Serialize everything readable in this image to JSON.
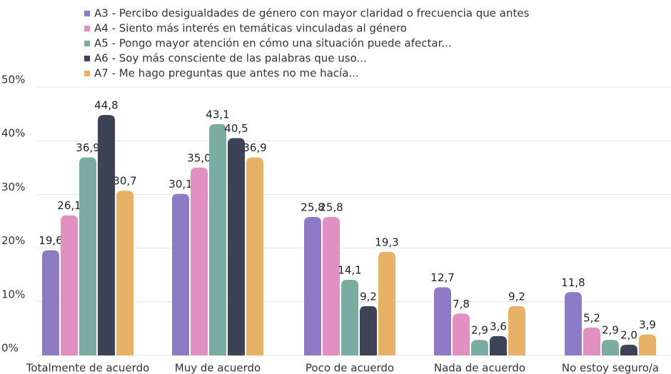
{
  "chart_data": {
    "type": "bar",
    "categories": [
      "Totalmente de acuerdo",
      "Muy de acuerdo",
      "Poco de acuerdo",
      "Nada de acuerdo",
      "No estoy seguro/a"
    ],
    "series": [
      {
        "name": "A3 - Percibo desigualdades de género con mayor claridad o frecuencia que antes",
        "color": "#8e7bc6",
        "values": [
          19.6,
          30.1,
          25.8,
          12.7,
          11.8
        ],
        "value_labels": [
          "19,6",
          "30,1",
          "25,8",
          "12,7",
          "11,8"
        ]
      },
      {
        "name": "A4 - Siento más interés en temáticas vinculadas al género",
        "color": "#e28fc2",
        "values": [
          26.1,
          35.0,
          25.8,
          7.8,
          5.2
        ],
        "value_labels": [
          "26,1",
          "35,0",
          "25,8",
          "7,8",
          "5,2"
        ]
      },
      {
        "name": "A5 - Pongo mayor atención en cómo una situación puede afectar...",
        "color": "#7aaca1",
        "values": [
          36.9,
          43.1,
          14.1,
          2.9,
          2.9
        ],
        "value_labels": [
          "36,9",
          "43,1",
          "14,1",
          "2,9",
          "2,9"
        ]
      },
      {
        "name": "A6 - Soy más consciente de las palabras que uso...",
        "color": "#3c4356",
        "values": [
          44.8,
          40.5,
          9.2,
          3.6,
          2.0
        ],
        "value_labels": [
          "44,8",
          "40,5",
          "9,2",
          "3,6",
          "2,0"
        ]
      },
      {
        "name": "A7 - Me hago preguntas que antes no me hacía...",
        "color": "#e8b168",
        "values": [
          30.7,
          36.9,
          19.3,
          9.2,
          3.9
        ],
        "value_labels": [
          "30,7",
          "36,9",
          "19,3",
          "9,2",
          "3,9"
        ]
      }
    ],
    "ylim": [
      0,
      50
    ],
    "yticks": [
      {
        "value": 0,
        "label": "0%"
      },
      {
        "value": 10,
        "label": "10%"
      },
      {
        "value": 20,
        "label": "20%"
      },
      {
        "value": 30,
        "label": "30%"
      },
      {
        "value": 40,
        "label": "40%"
      },
      {
        "value": 50,
        "label": "50%"
      }
    ],
    "grid": true,
    "legend": "top"
  }
}
